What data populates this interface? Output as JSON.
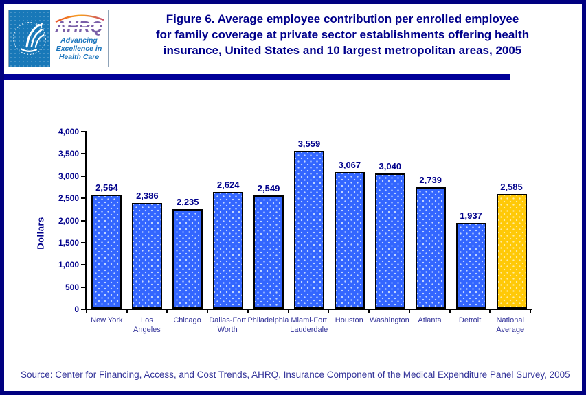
{
  "header": {
    "title": "Figure 6. Average employee contribution per enrolled employee\nfor family coverage at private sector establishments offering health\ninsurance, United States and 10 largest metropolitan areas, 2005",
    "logo": {
      "agency_acronym": "AHRQ",
      "tagline": "Advancing\nExcellence in\nHealth Care",
      "seal_name": "hhs-seal",
      "colors": {
        "hhs_blue": "#1878B8",
        "ahrq_purple": "#7A5FA8",
        "tagline_blue": "#1B75BC"
      }
    }
  },
  "chart_data": {
    "type": "bar",
    "title": "",
    "xlabel": "",
    "ylabel": "Dollars",
    "ylim": [
      0,
      4000
    ],
    "yticks": [
      0,
      500,
      1000,
      1500,
      2000,
      2500,
      3000,
      3500,
      4000
    ],
    "ytick_labels": [
      "0",
      "500",
      "1,000",
      "1,500",
      "2,000",
      "2,500",
      "3,000",
      "3,500",
      "4,000"
    ],
    "categories": [
      "New York",
      "Los\nAngeles",
      "Chicago",
      "Dallas-Fort\nWorth",
      "Philadelphia",
      "Miami-Fort\nLauderdale",
      "Houston",
      "Washington",
      "Atlanta",
      "Detroit",
      "National\nAverage"
    ],
    "values": [
      2564,
      2386,
      2235,
      2624,
      2549,
      3559,
      3067,
      3040,
      2739,
      1937,
      2585
    ],
    "value_labels": [
      "2,564",
      "2,386",
      "2,235",
      "2,624",
      "2,549",
      "3,559",
      "3,067",
      "3,040",
      "2,739",
      "1,937",
      "2,585"
    ],
    "highlight_index": 10,
    "bar_color_default": "#3366FF",
    "bar_color_highlight": "#FFC907",
    "grid": false,
    "legend": "none",
    "label_color": "#00008B"
  },
  "source": "Source: Center for Financing, Access, and Cost Trends, AHRQ, Insurance Component of the Medical Expenditure Panel Survey, 2005",
  "colors": {
    "frame_border": "#000080",
    "divider": "#000099",
    "title_text": "#00008B",
    "axis_text": "#00008B",
    "category_text": "#333399",
    "source_text": "#333399"
  }
}
